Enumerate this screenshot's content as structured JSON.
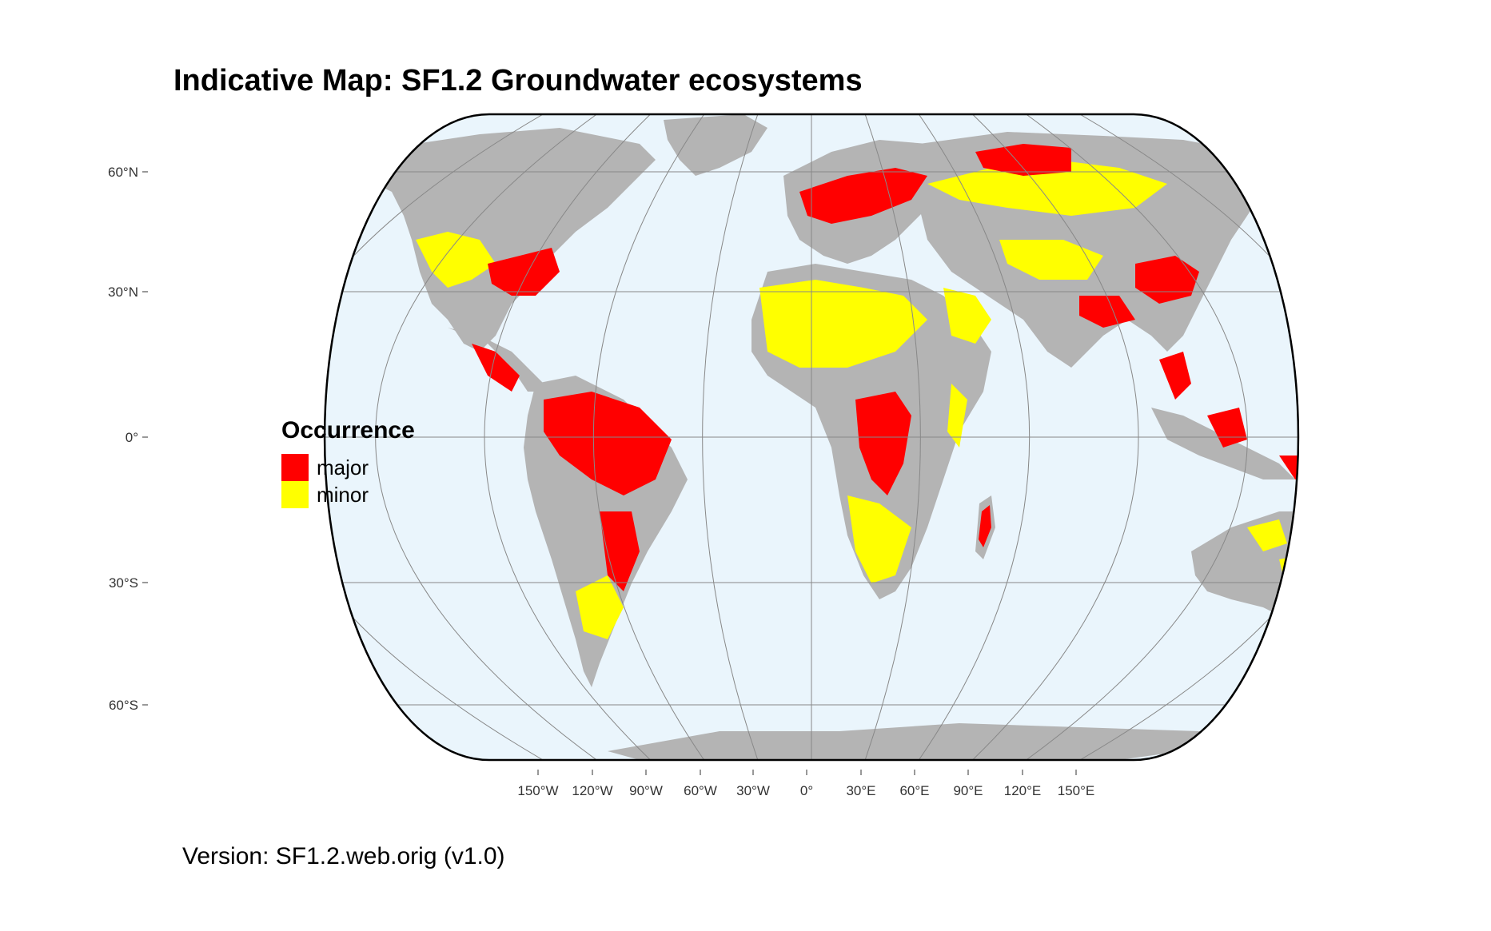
{
  "title": "Indicative Map: SF1.2 Groundwater ecosystems",
  "version": "Version: SF1.2.web.orig (v1.0)",
  "colors": {
    "ocean": "#eaf5fc",
    "land": "#b4b4b4",
    "major": "#ff0000",
    "minor": "#ffff00",
    "graticule": "#888888",
    "border": "#000000"
  },
  "axes": {
    "y_ticks": [
      "60°N",
      "30°N",
      "0°",
      "30°S",
      "60°S"
    ],
    "x_ticks": [
      "150°W",
      "120°W",
      "90°W",
      "60°W",
      "30°W",
      "0°",
      "30°E",
      "60°E",
      "90°E",
      "120°E",
      "150°E"
    ]
  },
  "legend": {
    "title": "Occurrence",
    "items": [
      {
        "label": "major",
        "color": "#ff0000"
      },
      {
        "label": "minor",
        "color": "#ffff00"
      }
    ]
  }
}
